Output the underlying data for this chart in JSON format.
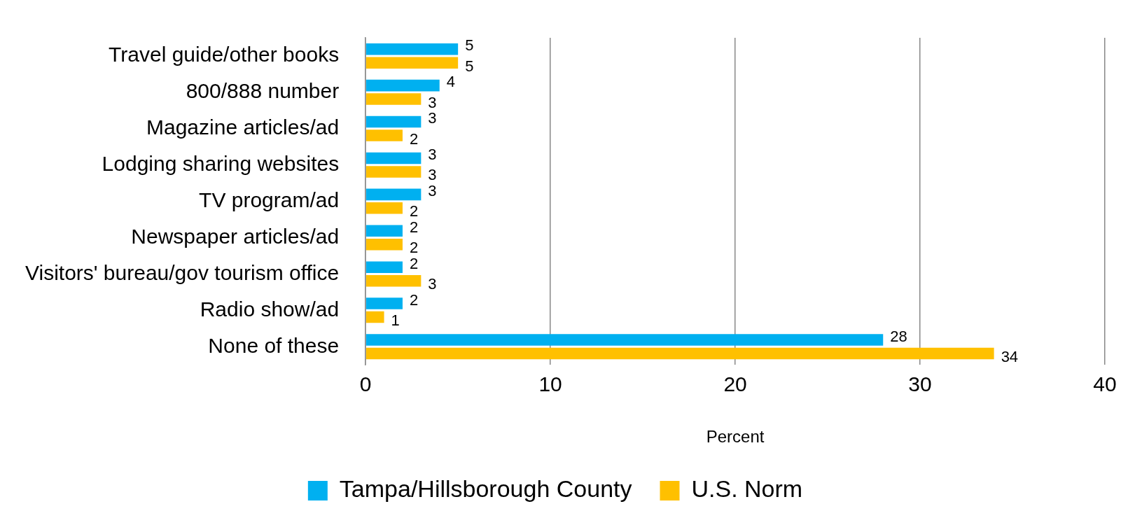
{
  "chart_data": {
    "type": "bar",
    "orientation": "horizontal",
    "xlabel": "Percent",
    "categories": [
      "Travel guide/other books",
      "800/888 number",
      "Magazine articles/ad",
      "Lodging sharing websites",
      "TV program/ad",
      "Newspaper articles/ad",
      "Visitors' bureau/gov tourism office",
      "Radio show/ad",
      "None of these"
    ],
    "series": [
      {
        "name": "Tampa/Hillsborough County",
        "color": "#00b0f0",
        "values": [
          5,
          4,
          3,
          3,
          3,
          2,
          2,
          2,
          28
        ]
      },
      {
        "name": "U.S. Norm",
        "color": "#ffc000",
        "values": [
          5,
          3,
          2,
          3,
          2,
          2,
          3,
          1,
          34
        ]
      }
    ],
    "xlim": [
      0,
      40
    ],
    "xticks": [
      0,
      10,
      20,
      30,
      40
    ],
    "grid": "x",
    "legend": "bottom",
    "data_labels": true
  }
}
